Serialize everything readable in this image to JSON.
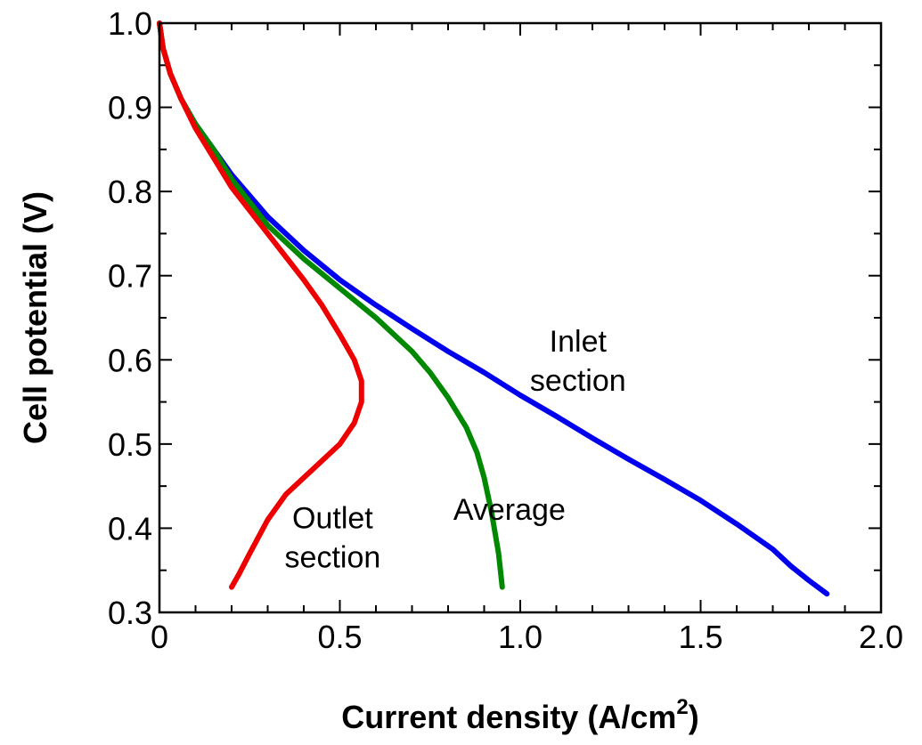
{
  "chart_data": {
    "type": "line",
    "xlabel": "Current density (A/cm",
    "xlabel_sup": "2",
    "xlabel_close": ")",
    "ylabel": "Cell potential (V)",
    "xlim": [
      0,
      2.0
    ],
    "ylim": [
      0.3,
      1.0
    ],
    "xticks": [
      "0",
      "0.5",
      "1.0",
      "1.5",
      "2.0"
    ],
    "yticks": [
      "0.3",
      "0.4",
      "0.5",
      "0.6",
      "0.7",
      "0.8",
      "0.9",
      "1.0"
    ],
    "grid": false,
    "series": [
      {
        "color": "#0000ee",
        "points": [
          [
            0.0,
            1.0
          ],
          [
            0.01,
            0.97
          ],
          [
            0.03,
            0.94
          ],
          [
            0.06,
            0.91
          ],
          [
            0.1,
            0.88
          ],
          [
            0.15,
            0.85
          ],
          [
            0.2,
            0.82
          ],
          [
            0.3,
            0.77
          ],
          [
            0.4,
            0.73
          ],
          [
            0.5,
            0.695
          ],
          [
            0.6,
            0.665
          ],
          [
            0.7,
            0.637
          ],
          [
            0.8,
            0.61
          ],
          [
            0.9,
            0.585
          ],
          [
            1.0,
            0.558
          ],
          [
            1.1,
            0.533
          ],
          [
            1.2,
            0.507
          ],
          [
            1.3,
            0.482
          ],
          [
            1.4,
            0.458
          ],
          [
            1.5,
            0.433
          ],
          [
            1.6,
            0.405
          ],
          [
            1.7,
            0.375
          ],
          [
            1.75,
            0.355
          ],
          [
            1.8,
            0.338
          ],
          [
            1.85,
            0.322
          ]
        ]
      },
      {
        "color": "#008800",
        "points": [
          [
            0.0,
            1.0
          ],
          [
            0.01,
            0.97
          ],
          [
            0.03,
            0.94
          ],
          [
            0.06,
            0.91
          ],
          [
            0.1,
            0.88
          ],
          [
            0.15,
            0.85
          ],
          [
            0.2,
            0.815
          ],
          [
            0.3,
            0.76
          ],
          [
            0.4,
            0.72
          ],
          [
            0.5,
            0.685
          ],
          [
            0.6,
            0.65
          ],
          [
            0.7,
            0.61
          ],
          [
            0.75,
            0.585
          ],
          [
            0.8,
            0.555
          ],
          [
            0.85,
            0.52
          ],
          [
            0.88,
            0.49
          ],
          [
            0.9,
            0.46
          ],
          [
            0.92,
            0.42
          ],
          [
            0.94,
            0.37
          ],
          [
            0.95,
            0.33
          ]
        ]
      },
      {
        "color": "#ee0000",
        "points": [
          [
            0.0,
            1.0
          ],
          [
            0.01,
            0.97
          ],
          [
            0.03,
            0.94
          ],
          [
            0.06,
            0.91
          ],
          [
            0.1,
            0.875
          ],
          [
            0.15,
            0.84
          ],
          [
            0.2,
            0.805
          ],
          [
            0.3,
            0.75
          ],
          [
            0.4,
            0.695
          ],
          [
            0.45,
            0.665
          ],
          [
            0.5,
            0.63
          ],
          [
            0.54,
            0.6
          ],
          [
            0.56,
            0.575
          ],
          [
            0.56,
            0.55
          ],
          [
            0.54,
            0.525
          ],
          [
            0.5,
            0.5
          ],
          [
            0.45,
            0.48
          ],
          [
            0.4,
            0.46
          ],
          [
            0.35,
            0.44
          ],
          [
            0.3,
            0.41
          ],
          [
            0.25,
            0.37
          ],
          [
            0.22,
            0.345
          ],
          [
            0.2,
            0.33
          ]
        ]
      }
    ],
    "annotations": [
      {
        "lines": [
          "Inlet",
          "section"
        ],
        "x": 1.16,
        "y": 0.61
      },
      {
        "lines": [
          "Average"
        ],
        "x": 0.97,
        "y": 0.41
      },
      {
        "lines": [
          "Outlet",
          "section"
        ],
        "x": 0.48,
        "y": 0.4
      }
    ]
  }
}
